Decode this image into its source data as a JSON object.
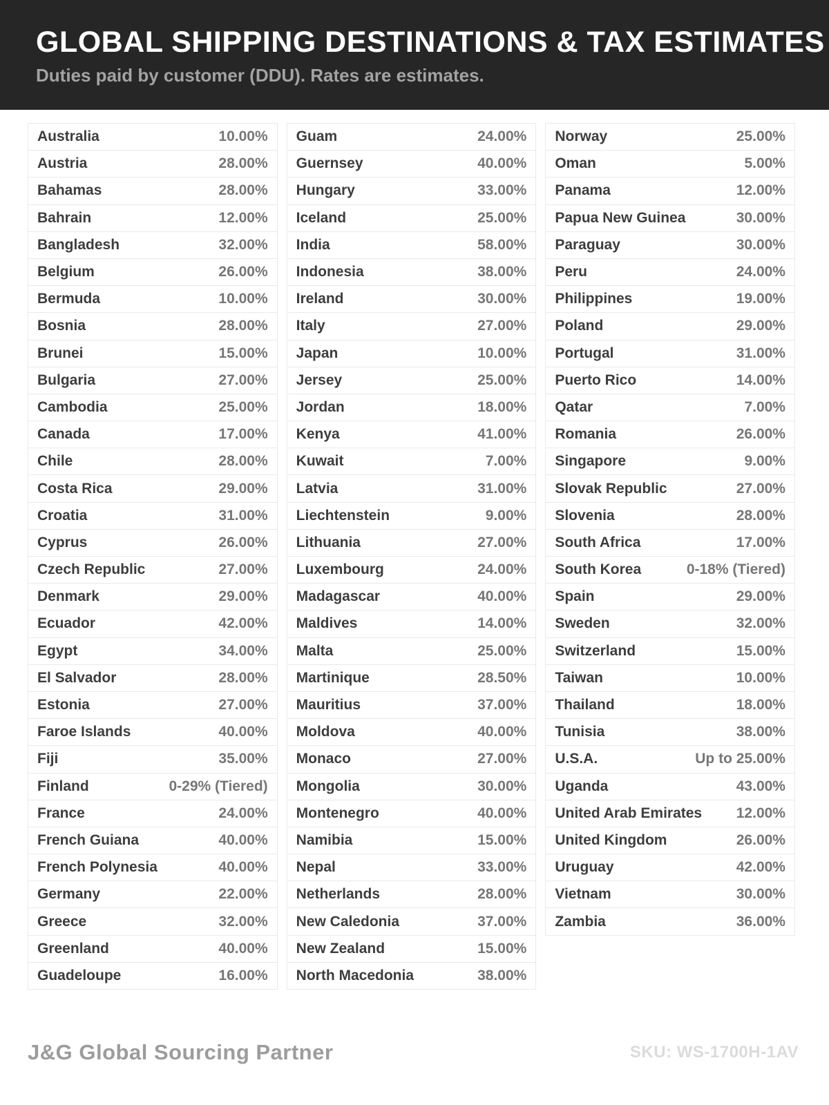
{
  "header": {
    "title": "GLOBAL SHIPPING DESTINATIONS & TAX ESTIMATES",
    "subtitle": "Duties paid by customer (DDU). Rates are estimates."
  },
  "colors": {
    "header_bg": "#262626",
    "title_text": "#ffffff",
    "subtitle_text": "#a3a3a3",
    "country_text": "#3d3d3d",
    "rate_text": "#767676",
    "cell_border": "#e9e9e9",
    "brand_text": "#9c9c9c",
    "sku_text": "#dbdbdb"
  },
  "table": {
    "columns": [
      {
        "rows": [
          {
            "country": "Australia",
            "rate": "10.00%"
          },
          {
            "country": "Austria",
            "rate": "28.00%"
          },
          {
            "country": "Bahamas",
            "rate": "28.00%"
          },
          {
            "country": "Bahrain",
            "rate": "12.00%"
          },
          {
            "country": "Bangladesh",
            "rate": "32.00%"
          },
          {
            "country": "Belgium",
            "rate": "26.00%"
          },
          {
            "country": "Bermuda",
            "rate": "10.00%"
          },
          {
            "country": "Bosnia",
            "rate": "28.00%"
          },
          {
            "country": "Brunei",
            "rate": "15.00%"
          },
          {
            "country": "Bulgaria",
            "rate": "27.00%"
          },
          {
            "country": "Cambodia",
            "rate": "25.00%"
          },
          {
            "country": "Canada",
            "rate": "17.00%"
          },
          {
            "country": "Chile",
            "rate": "28.00%"
          },
          {
            "country": "Costa Rica",
            "rate": "29.00%"
          },
          {
            "country": "Croatia",
            "rate": "31.00%"
          },
          {
            "country": "Cyprus",
            "rate": "26.00%"
          },
          {
            "country": "Czech Republic",
            "rate": "27.00%"
          },
          {
            "country": "Denmark",
            "rate": "29.00%"
          },
          {
            "country": "Ecuador",
            "rate": "42.00%"
          },
          {
            "country": "Egypt",
            "rate": "34.00%"
          },
          {
            "country": "El Salvador",
            "rate": "28.00%"
          },
          {
            "country": "Estonia",
            "rate": "27.00%"
          },
          {
            "country": "Faroe Islands",
            "rate": "40.00%"
          },
          {
            "country": "Fiji",
            "rate": "35.00%"
          },
          {
            "country": "Finland",
            "rate": "0-29% (Tiered)"
          },
          {
            "country": "France",
            "rate": "24.00%"
          },
          {
            "country": "French Guiana",
            "rate": "40.00%"
          },
          {
            "country": "French Polynesia",
            "rate": "40.00%"
          },
          {
            "country": "Germany",
            "rate": "22.00%"
          },
          {
            "country": "Greece",
            "rate": "32.00%"
          },
          {
            "country": "Greenland",
            "rate": "40.00%"
          },
          {
            "country": "Guadeloupe",
            "rate": "16.00%"
          }
        ]
      },
      {
        "rows": [
          {
            "country": "Guam",
            "rate": "24.00%"
          },
          {
            "country": "Guernsey",
            "rate": "40.00%"
          },
          {
            "country": "Hungary",
            "rate": "33.00%"
          },
          {
            "country": "Iceland",
            "rate": "25.00%"
          },
          {
            "country": "India",
            "rate": "58.00%"
          },
          {
            "country": "Indonesia",
            "rate": "38.00%"
          },
          {
            "country": "Ireland",
            "rate": "30.00%"
          },
          {
            "country": "Italy",
            "rate": "27.00%"
          },
          {
            "country": "Japan",
            "rate": "10.00%"
          },
          {
            "country": "Jersey",
            "rate": "25.00%"
          },
          {
            "country": "Jordan",
            "rate": "18.00%"
          },
          {
            "country": "Kenya",
            "rate": "41.00%"
          },
          {
            "country": "Kuwait",
            "rate": "7.00%"
          },
          {
            "country": "Latvia",
            "rate": "31.00%"
          },
          {
            "country": "Liechtenstein",
            "rate": "9.00%"
          },
          {
            "country": "Lithuania",
            "rate": "27.00%"
          },
          {
            "country": "Luxembourg",
            "rate": "24.00%"
          },
          {
            "country": "Madagascar",
            "rate": "40.00%"
          },
          {
            "country": "Maldives",
            "rate": "14.00%"
          },
          {
            "country": "Malta",
            "rate": "25.00%"
          },
          {
            "country": "Martinique",
            "rate": "28.50%"
          },
          {
            "country": "Mauritius",
            "rate": "37.00%"
          },
          {
            "country": "Moldova",
            "rate": "40.00%"
          },
          {
            "country": "Monaco",
            "rate": "27.00%"
          },
          {
            "country": "Mongolia",
            "rate": "30.00%"
          },
          {
            "country": "Montenegro",
            "rate": "40.00%"
          },
          {
            "country": "Namibia",
            "rate": "15.00%"
          },
          {
            "country": "Nepal",
            "rate": "33.00%"
          },
          {
            "country": "Netherlands",
            "rate": "28.00%"
          },
          {
            "country": "New Caledonia",
            "rate": "37.00%"
          },
          {
            "country": "New Zealand",
            "rate": "15.00%"
          },
          {
            "country": "North Macedonia",
            "rate": "38.00%"
          }
        ]
      },
      {
        "rows": [
          {
            "country": "Norway",
            "rate": "25.00%"
          },
          {
            "country": "Oman",
            "rate": "5.00%"
          },
          {
            "country": "Panama",
            "rate": "12.00%"
          },
          {
            "country": "Papua New Guinea",
            "rate": "30.00%"
          },
          {
            "country": "Paraguay",
            "rate": "30.00%"
          },
          {
            "country": "Peru",
            "rate": "24.00%"
          },
          {
            "country": "Philippines",
            "rate": "19.00%"
          },
          {
            "country": "Poland",
            "rate": "29.00%"
          },
          {
            "country": "Portugal",
            "rate": "31.00%"
          },
          {
            "country": "Puerto Rico",
            "rate": "14.00%"
          },
          {
            "country": "Qatar",
            "rate": "7.00%"
          },
          {
            "country": "Romania",
            "rate": "26.00%"
          },
          {
            "country": "Singapore",
            "rate": "9.00%"
          },
          {
            "country": "Slovak Republic",
            "rate": "27.00%"
          },
          {
            "country": "Slovenia",
            "rate": "28.00%"
          },
          {
            "country": "South Africa",
            "rate": "17.00%"
          },
          {
            "country": "South Korea",
            "rate": "0-18% (Tiered)"
          },
          {
            "country": "Spain",
            "rate": "29.00%"
          },
          {
            "country": "Sweden",
            "rate": "32.00%"
          },
          {
            "country": "Switzerland",
            "rate": "15.00%"
          },
          {
            "country": "Taiwan",
            "rate": "10.00%"
          },
          {
            "country": "Thailand",
            "rate": "18.00%"
          },
          {
            "country": "Tunisia",
            "rate": "38.00%"
          },
          {
            "country": "U.S.A.",
            "rate": "Up to 25.00%"
          },
          {
            "country": "Uganda",
            "rate": "43.00%"
          },
          {
            "country": "United Arab Emirates",
            "rate": "12.00%"
          },
          {
            "country": "United Kingdom",
            "rate": "26.00%"
          },
          {
            "country": "Uruguay",
            "rate": "42.00%"
          },
          {
            "country": "Vietnam",
            "rate": "30.00%"
          },
          {
            "country": "Zambia",
            "rate": "36.00%"
          }
        ]
      }
    ]
  },
  "footer": {
    "brand": "J&G Global Sourcing Partner",
    "sku": "SKU: WS-1700H-1AV"
  }
}
